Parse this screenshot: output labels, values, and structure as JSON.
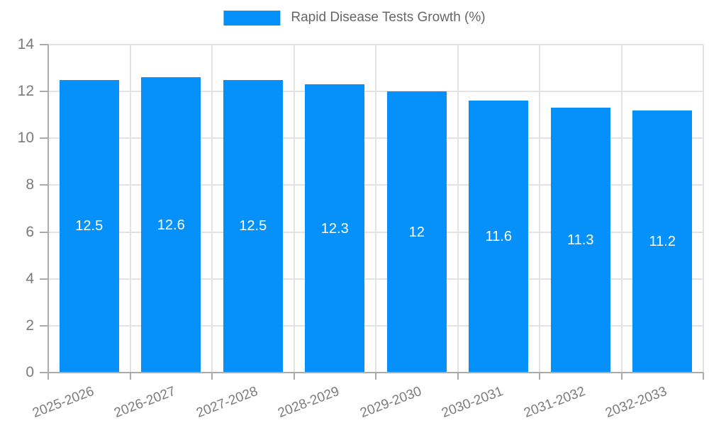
{
  "chart_data": {
    "type": "bar",
    "title": "Rapid Disease Tests Growth (%)",
    "legend": {
      "label": "Rapid Disease Tests Growth (%)",
      "position": "top"
    },
    "categories": [
      "2025-2026",
      "2026-2027",
      "2027-2028",
      "2028-2029",
      "2029-2030",
      "2030-2031",
      "2031-2032",
      "2032-2033"
    ],
    "values": [
      12.5,
      12.6,
      12.5,
      12.3,
      12,
      11.6,
      11.3,
      11.2
    ],
    "value_labels": [
      "12.5",
      "12.6",
      "12.5",
      "12.3",
      "12",
      "11.6",
      "11.3",
      "11.2"
    ],
    "xlabel": "",
    "ylabel": "",
    "ylim": [
      0,
      14
    ],
    "y_ticks": [
      0,
      2,
      4,
      6,
      8,
      10,
      12,
      14
    ],
    "grid": true,
    "colors": {
      "bar": "#0691fa",
      "bar_value_text": "#ffffff",
      "gridline": "#e3e3e3",
      "axis": "#acacac",
      "tick_label_text": "#7b7b7b",
      "legend_text": "#666666"
    }
  }
}
